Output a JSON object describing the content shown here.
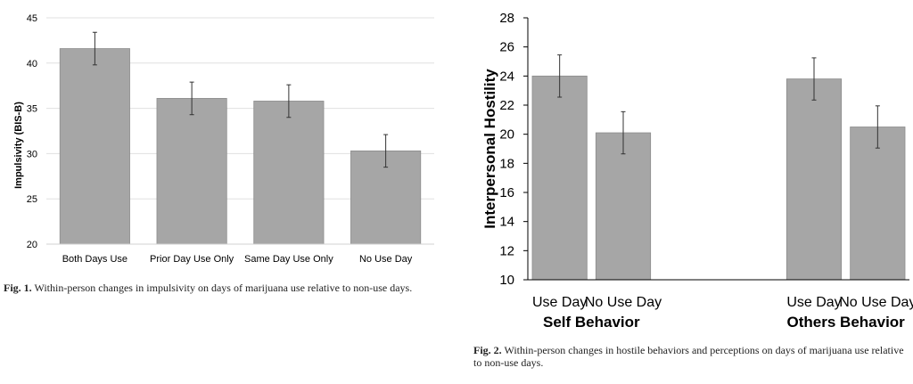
{
  "chart_data": [
    {
      "type": "bar",
      "ylabel": "Impulsivity (BIS-B)",
      "xlabel": "",
      "ylim": [
        20,
        45
      ],
      "yticks": [
        20,
        25,
        30,
        35,
        40,
        45
      ],
      "categories": [
        "Both Days Use",
        "Prior Day Use Only",
        "Same Day Use Only",
        "No Use Day"
      ],
      "values": [
        41.6,
        36.1,
        35.8,
        30.3
      ],
      "errors": [
        1.8,
        1.8,
        1.8,
        1.8
      ],
      "bar_color": "#a6a6a6",
      "caption_label": "Fig. 1.",
      "caption_text": "Within-person changes in impulsivity on days of marijuana use relative to non-use days."
    },
    {
      "type": "bar",
      "ylabel": "Interpersonal Hostility",
      "xlabel": "",
      "ylim": [
        10,
        28
      ],
      "yticks": [
        10,
        12,
        14,
        16,
        18,
        20,
        22,
        24,
        26,
        28
      ],
      "groups": [
        {
          "name": "Self Behavior",
          "categories": [
            "Use Day",
            "No Use Day"
          ],
          "values": [
            24.0,
            20.1
          ],
          "errors": [
            1.45,
            1.45
          ]
        },
        {
          "name": "Others Behavior",
          "categories": [
            "Use Day",
            "No Use Day"
          ],
          "values": [
            23.8,
            20.5
          ],
          "errors": [
            1.45,
            1.45
          ]
        }
      ],
      "bar_color": "#a6a6a6",
      "caption_label": "Fig. 2.",
      "caption_text": "Within-person changes in hostile behaviors and perceptions on days of marijuana use relative to non-use days."
    }
  ]
}
